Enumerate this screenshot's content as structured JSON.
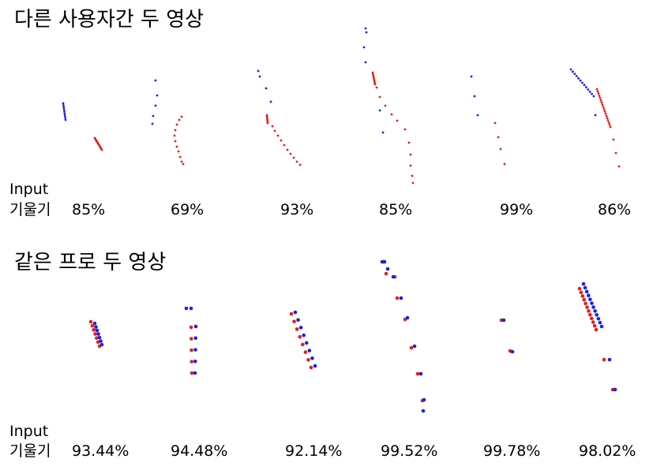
{
  "sections": [
    {
      "title": "다른 사용자간 두 영상",
      "row_label_1": "Input",
      "row_label_2": "기울기",
      "values": [
        "85%",
        "69%",
        "93%",
        "85%",
        "99%",
        "86%"
      ]
    },
    {
      "title": "같은 프로 두 영상",
      "row_label_1": "Input",
      "row_label_2": "기울기",
      "values": [
        "93.44%",
        "94.48%",
        "92.14%",
        "99.52%",
        "99.78%",
        "98.02%"
      ]
    }
  ],
  "colors": {
    "blue": "#1f1fe0",
    "red": "#e01f1f"
  }
}
